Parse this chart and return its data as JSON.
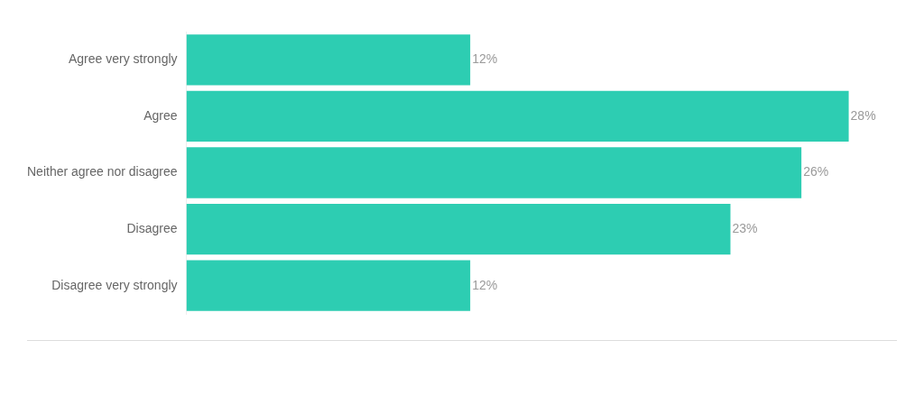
{
  "chart_data": {
    "type": "bar",
    "orientation": "horizontal",
    "categories": [
      "Agree very strongly",
      "Agree",
      "Neither agree nor disagree",
      "Disagree",
      "Disagree very strongly"
    ],
    "values": [
      12,
      28,
      26,
      23,
      12
    ],
    "value_labels": [
      "12%",
      "28%",
      "26%",
      "23%",
      "12%"
    ],
    "color": "#2dcdb2",
    "tick_labels": "y"
  }
}
